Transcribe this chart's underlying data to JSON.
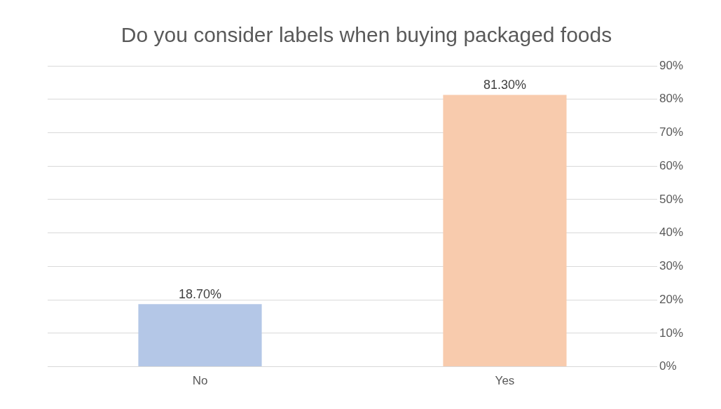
{
  "chart_data": {
    "type": "bar",
    "title": "Do you consider labels when buying packaged foods",
    "categories": [
      "No",
      "Yes"
    ],
    "values": [
      18.7,
      81.3
    ],
    "colors": [
      "#b4c7e7",
      "#f8cbad"
    ],
    "value_labels": [
      "18.70%",
      "81.30%"
    ],
    "ylim": [
      0,
      90
    ],
    "yticks": [
      {
        "value": 0,
        "label": "0%"
      },
      {
        "value": 10,
        "label": "10%"
      },
      {
        "value": 20,
        "label": "20%"
      },
      {
        "value": 30,
        "label": "30%"
      },
      {
        "value": 40,
        "label": "40%"
      },
      {
        "value": 50,
        "label": "50%"
      },
      {
        "value": 60,
        "label": "60%"
      },
      {
        "value": 70,
        "label": "70%"
      },
      {
        "value": 80,
        "label": "80%"
      },
      {
        "value": 90,
        "label": "90%"
      }
    ],
    "grid": "y",
    "legend": false
  }
}
